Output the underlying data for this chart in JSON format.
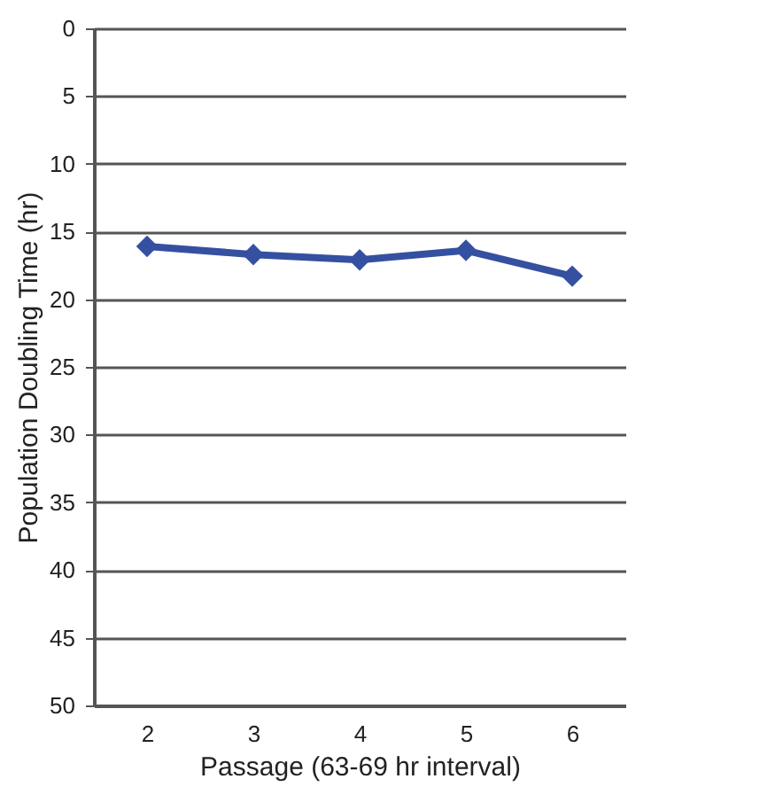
{
  "chart_data": {
    "type": "line",
    "xlabel": "Passage (63-69 hr interval)",
    "ylabel": "Population Doubling Time  (hr)",
    "categories": [
      "2",
      "3",
      "4",
      "5",
      "6"
    ],
    "series": [
      {
        "color": "#3550a0",
        "values": [
          16.1,
          16.7,
          17.1,
          16.4,
          18.3
        ]
      }
    ],
    "ylim": [
      50,
      0
    ],
    "yticks": [
      0,
      5,
      10,
      15,
      20,
      25,
      30,
      35,
      40,
      45,
      50
    ],
    "grid": "y",
    "marker": "diamond",
    "line_style": "solid",
    "legend": false
  }
}
